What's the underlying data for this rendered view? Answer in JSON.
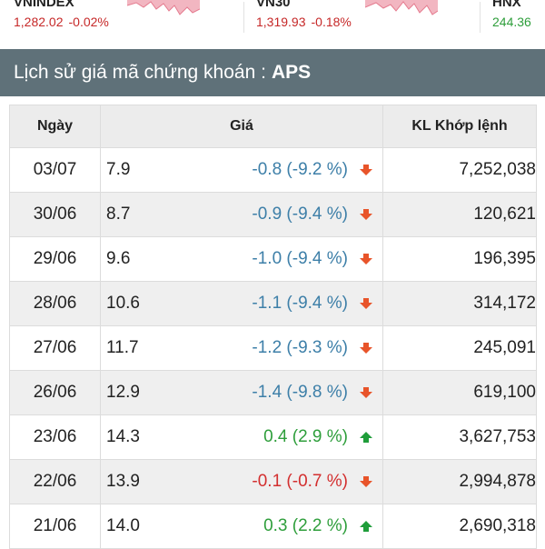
{
  "indices": [
    {
      "name": "VNINDEX",
      "value": "1,282.02",
      "change": "-0.02%",
      "direction": "down"
    },
    {
      "name": "VN30",
      "value": "1,319.93",
      "change": "-0.18%",
      "direction": "down"
    },
    {
      "name": "HNX",
      "value": "244.36",
      "change": "",
      "direction": "up"
    }
  ],
  "header": {
    "title": "Lịch sử giá mã chứng khoán :",
    "code": "APS"
  },
  "table": {
    "headers": {
      "date": "Ngày",
      "price": "Giá",
      "volume": "KL Khớp lệnh"
    },
    "rows": [
      {
        "date": "03/07",
        "price": "7.9",
        "change": "-0.8 (-9.2 %)",
        "trend": "down",
        "volume": "7,252,038"
      },
      {
        "date": "30/06",
        "price": "8.7",
        "change": "-0.9 (-9.4 %)",
        "trend": "down",
        "volume": "120,621"
      },
      {
        "date": "29/06",
        "price": "9.6",
        "change": "-1.0 (-9.4 %)",
        "trend": "down",
        "volume": "196,395"
      },
      {
        "date": "28/06",
        "price": "10.6",
        "change": "-1.1 (-9.4 %)",
        "trend": "down",
        "volume": "314,172"
      },
      {
        "date": "27/06",
        "price": "11.7",
        "change": "-1.2 (-9.3 %)",
        "trend": "down",
        "volume": "245,091"
      },
      {
        "date": "26/06",
        "price": "12.9",
        "change": "-1.4 (-9.8 %)",
        "trend": "down",
        "volume": "619,100"
      },
      {
        "date": "23/06",
        "price": "14.3",
        "change": "0.4 (2.9 %)",
        "trend": "up",
        "volume": "3,627,753"
      },
      {
        "date": "22/06",
        "price": "13.9",
        "change": "-0.1 (-0.7 %)",
        "trend": "down-red",
        "volume": "2,994,878"
      },
      {
        "date": "21/06",
        "price": "14.0",
        "change": "0.3 (2.2 %)",
        "trend": "up",
        "volume": "2,690,318"
      }
    ]
  },
  "colors": {
    "header_bg": "#5f7179",
    "down_blue": "#3d7fa8",
    "down_red": "#d32f2f",
    "up_green": "#2e9e3b",
    "arrow_down": "#e8542a",
    "arrow_up": "#1f9d3a"
  },
  "icons": {
    "down": "arrow-down-icon",
    "up": "arrow-up-icon"
  }
}
